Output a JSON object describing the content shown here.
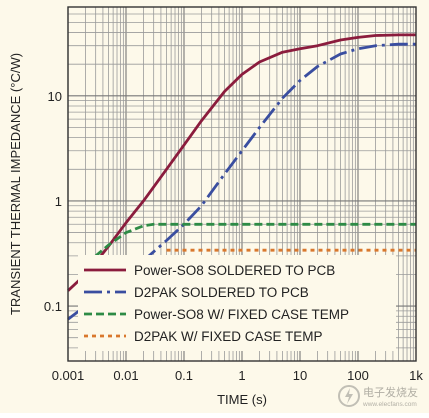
{
  "chart_data": {
    "type": "line",
    "title": "",
    "xlabel": "TIME (s)",
    "ylabel": "TRANSIENT THERMAL IMPEDANCE (°C/W)",
    "xscale": "log",
    "yscale": "log",
    "xlim": [
      0.001,
      1000
    ],
    "ylim": [
      0.03,
      70
    ],
    "grid": true,
    "legend_position": "bottom-center",
    "x_tick_labels": [
      "0.001",
      "0.01",
      "0.1",
      "1",
      "10",
      "100",
      "1k"
    ],
    "x_tick_values": [
      0.001,
      0.01,
      0.1,
      1,
      10,
      100,
      1000
    ],
    "y_tick_labels": [
      "0.1",
      "1",
      "10"
    ],
    "y_tick_values": [
      0.1,
      1,
      10
    ],
    "series": [
      {
        "name": "Power-SO8 SOLDERED TO PCB",
        "color": "#8b1c3d",
        "dash": "solid",
        "x": [
          0.001,
          0.002,
          0.003,
          0.005,
          0.01,
          0.02,
          0.05,
          0.1,
          0.2,
          0.5,
          1,
          2,
          5,
          10,
          20,
          50,
          100,
          200,
          500,
          1000
        ],
        "y": [
          0.14,
          0.2,
          0.26,
          0.37,
          0.62,
          1.0,
          2.0,
          3.4,
          5.8,
          11,
          16,
          21,
          26,
          28,
          30,
          34,
          36,
          37.5,
          38,
          38
        ]
      },
      {
        "name": "D2PAK SOLDERED TO PCB",
        "color": "#3a4ea0",
        "dash": "long-dash-dot",
        "x": [
          0.001,
          0.002,
          0.003,
          0.005,
          0.01,
          0.02,
          0.05,
          0.1,
          0.2,
          0.5,
          1,
          2,
          5,
          10,
          20,
          50,
          100,
          200,
          500,
          1000
        ],
        "y": [
          0.075,
          0.1,
          0.12,
          0.15,
          0.2,
          0.27,
          0.42,
          0.6,
          0.9,
          1.8,
          3.0,
          5.0,
          9.5,
          14,
          19,
          25,
          28,
          30,
          31,
          31
        ]
      },
      {
        "name": "Power-SO8 W/ FIXED CASE TEMP",
        "color": "#2e8b46",
        "dash": "dashed",
        "x": [
          0.003,
          0.005,
          0.01,
          0.02,
          0.03,
          0.05,
          0.1,
          1,
          10,
          100,
          1000
        ],
        "y": [
          0.3,
          0.38,
          0.5,
          0.58,
          0.6,
          0.6,
          0.6,
          0.6,
          0.6,
          0.6,
          0.6
        ]
      },
      {
        "name": "D2PAK W/ FIXED CASE TEMP",
        "color": "#d9782d",
        "dash": "dotted",
        "x": [
          0.05,
          0.1,
          1,
          10,
          100,
          1000
        ],
        "y": [
          0.34,
          0.34,
          0.34,
          0.34,
          0.34,
          0.34
        ]
      }
    ]
  },
  "watermark": {
    "text": "电子发烧友",
    "url_text": "www.elecfans.com"
  }
}
